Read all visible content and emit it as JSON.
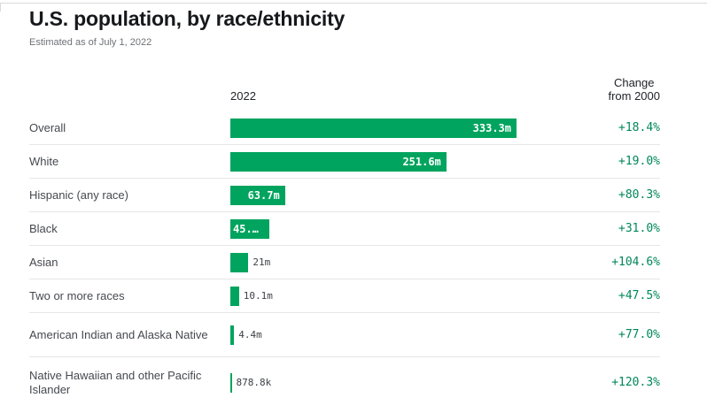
{
  "page": {
    "title": "U.S. population, by race/ethnicity",
    "subtitle": "Estimated as of July 1, 2022"
  },
  "table": {
    "col_year": "2022",
    "col_change_line1": "Change",
    "col_change_line2": "from 2000"
  },
  "chart_data": {
    "type": "bar",
    "orientation": "horizontal",
    "title": "U.S. population, by race/ethnicity",
    "subtitle": "Estimated as of July 1, 2022",
    "value_column_header": "2022",
    "change_column_header": "Change from 2000",
    "unit": "millions of people",
    "xlim": [
      0,
      333.3
    ],
    "grid": false,
    "colors": {
      "bar": "#00a45e",
      "change_text": "#00875a"
    },
    "rows": [
      {
        "label": "Overall",
        "value_m": 333.3,
        "bar_label": "333.3m",
        "label_inside": true,
        "truncated": false,
        "change": "+18.4%"
      },
      {
        "label": "White",
        "value_m": 251.6,
        "bar_label": "251.6m",
        "label_inside": true,
        "truncated": false,
        "change": "+19.0%"
      },
      {
        "label": "Hispanic (any race)",
        "value_m": 63.7,
        "bar_label": "63.7m",
        "label_inside": true,
        "truncated": false,
        "change": "+80.3%"
      },
      {
        "label": "Black",
        "value_m": 45.0,
        "bar_label": "45.…",
        "label_inside": true,
        "truncated": true,
        "change": "+31.0%"
      },
      {
        "label": "Asian",
        "value_m": 21.0,
        "bar_label": "21m",
        "label_inside": false,
        "truncated": false,
        "change": "+104.6%"
      },
      {
        "label": "Two or more races",
        "value_m": 10.1,
        "bar_label": "10.1m",
        "label_inside": false,
        "truncated": false,
        "change": "+47.5%"
      },
      {
        "label": "American Indian and Alaska Native",
        "value_m": 4.4,
        "bar_label": "4.4m",
        "label_inside": false,
        "truncated": false,
        "change": "+77.0%"
      },
      {
        "label": "Native Hawaiian and other Pacific Islander",
        "value_m": 0.8788,
        "bar_label": "878.8k",
        "label_inside": false,
        "truncated": false,
        "change": "+120.3%"
      }
    ]
  }
}
